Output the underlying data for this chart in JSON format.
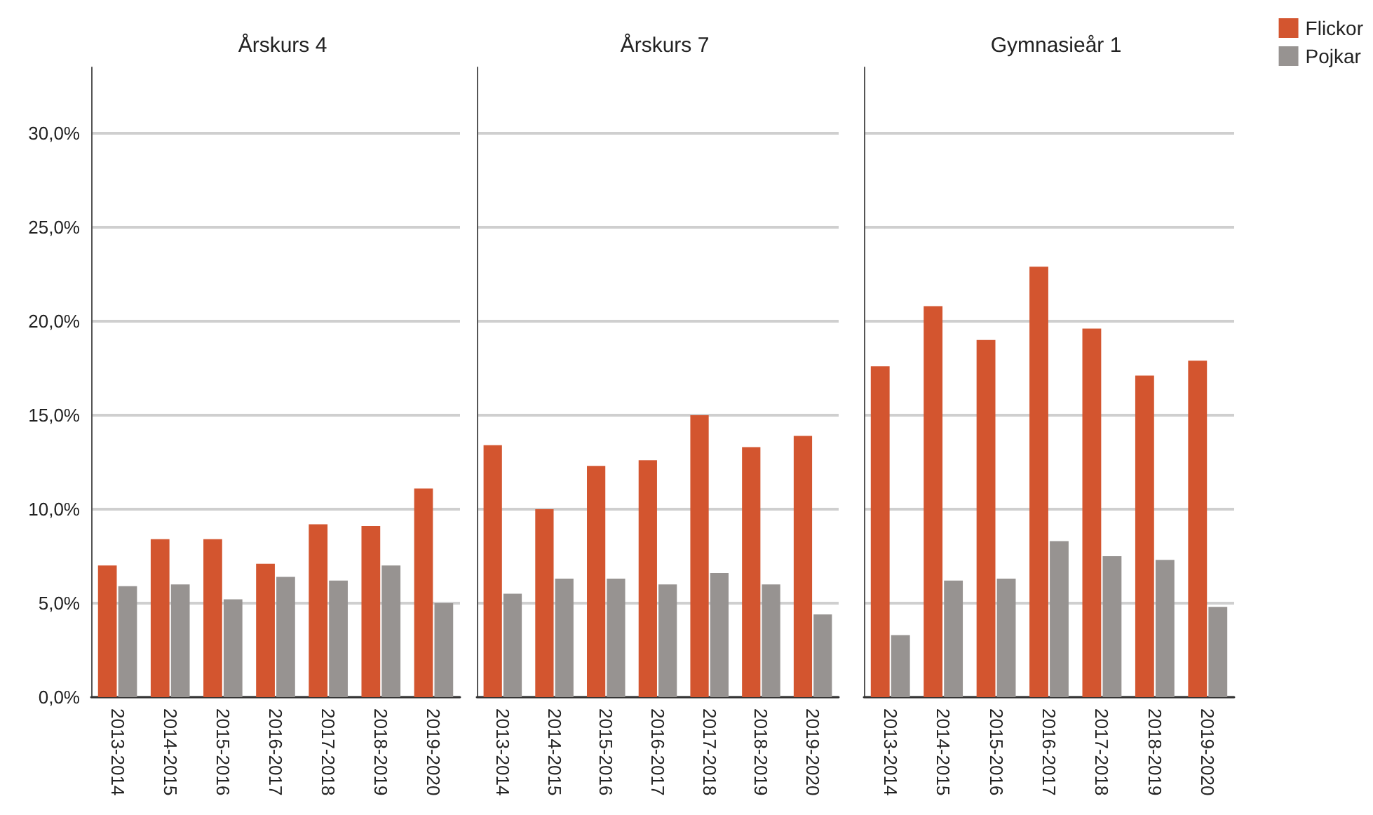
{
  "chart_data": [
    {
      "type": "bar",
      "title": "Årskurs 4",
      "categories": [
        "2013-2014",
        "2014-2015",
        "2015-2016",
        "2016-2017",
        "2017-2018",
        "2018-2019",
        "2019-2020"
      ],
      "series": [
        {
          "color": "#d3552f",
          "values": [
            7.0,
            8.4,
            8.4,
            7.1,
            9.2,
            9.1,
            11.1
          ]
        },
        {
          "color": "#979391",
          "values": [
            5.9,
            6.0,
            5.2,
            6.4,
            6.2,
            7.0,
            5.0
          ]
        }
      ],
      "ylim": [
        0,
        33.5
      ],
      "yticks": [
        {
          "value": 0,
          "label": "0,0%"
        },
        {
          "value": 5,
          "label": "5,0%"
        },
        {
          "value": 10,
          "label": "10,0%"
        },
        {
          "value": 15,
          "label": "15,0%"
        },
        {
          "value": 20,
          "label": "20,0%"
        },
        {
          "value": 25,
          "label": "25,0%"
        },
        {
          "value": 30,
          "label": "30,0%"
        }
      ],
      "grid": "y",
      "legend": false
    },
    {
      "type": "bar",
      "title": "Årskurs 7",
      "categories": [
        "2013-2014",
        "2014-2015",
        "2015-2016",
        "2016-2017",
        "2017-2018",
        "2018-2019",
        "2019-2020"
      ],
      "series": [
        {
          "color": "#d3552f",
          "values": [
            13.4,
            10.0,
            12.3,
            12.6,
            15.0,
            13.3,
            13.9
          ]
        },
        {
          "color": "#979391",
          "values": [
            5.5,
            6.3,
            6.3,
            6.0,
            6.6,
            6.0,
            4.4
          ]
        }
      ],
      "ylim": [
        0,
        33.5
      ],
      "yticks": [
        0,
        5,
        10,
        15,
        20,
        25,
        30
      ],
      "grid": "y",
      "legend": false,
      "tick_labels": "x"
    },
    {
      "type": "bar",
      "title": "Gymnasieår 1",
      "categories": [
        "2013-2014",
        "2014-2015",
        "2015-2016",
        "2016-2017",
        "2017-2018",
        "2018-2019",
        "2019-2020"
      ],
      "series": [
        {
          "name": "Flickor",
          "color": "#d3552f",
          "values": [
            17.6,
            20.8,
            19.0,
            22.9,
            19.6,
            17.1,
            17.9
          ]
        },
        {
          "name": "Pojkar",
          "color": "#979391",
          "values": [
            3.3,
            6.2,
            6.3,
            8.3,
            7.5,
            7.3,
            4.8
          ]
        }
      ],
      "ylim": [
        0,
        33.5
      ],
      "yticks": [
        0,
        5,
        10,
        15,
        20,
        25,
        30
      ],
      "grid": "y",
      "legend": "top right",
      "tick_labels": "x"
    }
  ]
}
